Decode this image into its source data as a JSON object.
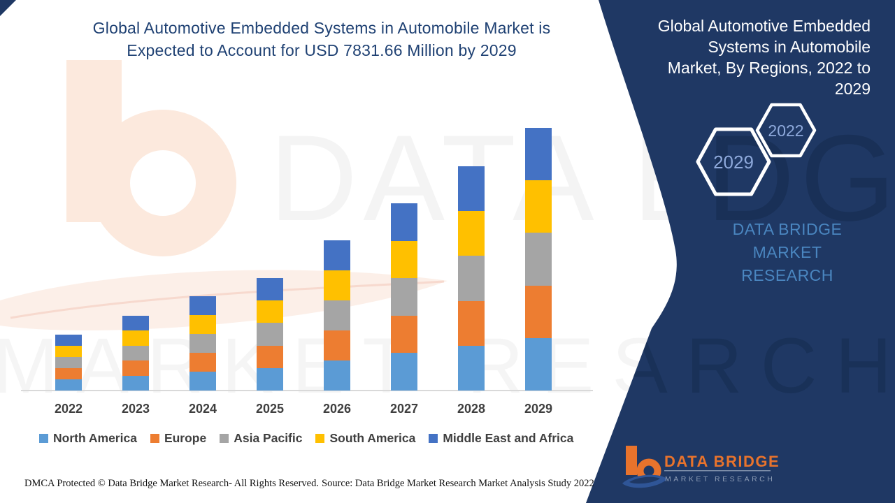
{
  "header": {
    "title_line1": "Global Automotive Embedded Systems in Automobile Market is",
    "title_line2": "Expected to Account for USD 7831.66 Million by 2029"
  },
  "side_panel": {
    "title_line1": "Global Automotive Embedded",
    "title_line2": "Systems in Automobile",
    "title_line3": "Market, By Regions, 2022 to",
    "title_line4": "2029",
    "hexagon_top_label": "2022",
    "hexagon_bottom_label": "2029",
    "brand_line1": "DATA BRIDGE MARKET",
    "brand_line2": "RESEARCH",
    "bg_color": "#1F3864"
  },
  "watermark": {
    "line1": "DATA BRI",
    "line1_panel": "DGE",
    "line2": "MARKET RESE",
    "line2_panel": "ARCH"
  },
  "footer": {
    "dmca": "DMCA Protected © Data Bridge Market Research- All Rights Reserved.",
    "source": "Source: Data Bridge Market Research Market Analysis Study 2022",
    "logo_brand": "DATA BRIDGE",
    "logo_sub": "MARKET RESEARCH"
  },
  "colors": {
    "panel_navy": "#1F3864",
    "title_blue": "#1F4173",
    "brand_blue": "#4A86C0",
    "hex_label_blue": "#8EA9DB",
    "axis_gray": "#D9D9D9",
    "label_gray": "#3F3F3F",
    "logo_orange": "#E8732C",
    "logo_swoosh_blue": "#2F5597"
  },
  "chart_data": {
    "type": "bar",
    "stacked": true,
    "unit": "USD Million",
    "title": "Global Automotive Embedded Systems in Automobile Market, By Regions, 2022 to 2029",
    "xlabel": "",
    "ylabel": "",
    "grid": false,
    "legend_position": "bottom",
    "ylim": [
      0,
      8000
    ],
    "categories": [
      "2022",
      "2023",
      "2024",
      "2025",
      "2026",
      "2027",
      "2028",
      "2029"
    ],
    "series": [
      {
        "name": "North America",
        "color": "#5B9BD5",
        "values": [
          333.2,
          445.8,
          562.4,
          670.6,
          895.6,
          1116.2,
          1337.2,
          1566.33
        ]
      },
      {
        "name": "Europe",
        "color": "#ED7D31",
        "values": [
          333.2,
          445.8,
          562.4,
          670.6,
          895.6,
          1116.2,
          1337.2,
          1566.33
        ]
      },
      {
        "name": "Asia Pacific",
        "color": "#A5A5A5",
        "values": [
          333.2,
          445.8,
          562.4,
          670.6,
          895.6,
          1116.2,
          1337.2,
          1566.33
        ]
      },
      {
        "name": "South America",
        "color": "#FFC000",
        "values": [
          333.2,
          445.8,
          562.4,
          670.6,
          895.6,
          1116.2,
          1337.2,
          1566.33
        ]
      },
      {
        "name": "Middle East and Africa",
        "color": "#4472C4",
        "values": [
          333.2,
          445.8,
          562.4,
          670.6,
          895.6,
          1116.2,
          1337.2,
          1566.33
        ]
      }
    ],
    "totals_estimated": [
      1666,
      2229,
      2812,
      3353,
      4478,
      5581,
      6686,
      7831.66
    ]
  }
}
